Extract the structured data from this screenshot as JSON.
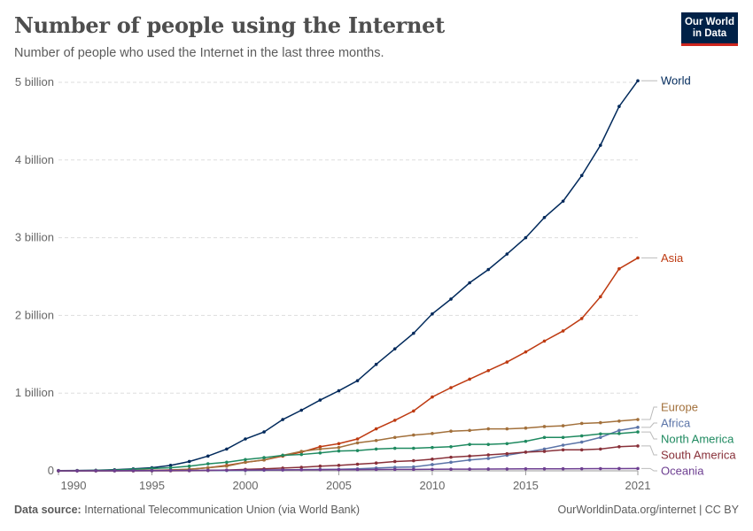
{
  "header": {
    "title": "Number of people using the Internet",
    "subtitle": "Number of people who used the Internet in the last three months.",
    "logo": "Our World in Data"
  },
  "footer": {
    "source_label": "Data source:",
    "source": "International Telecommunication Union (via World Bank)",
    "url": "OurWorldinData.org/internet | CC BY"
  },
  "chart_data": {
    "type": "line",
    "title": "Number of people using the Internet",
    "xlim": [
      1990,
      2021
    ],
    "ylim": [
      0,
      5000000000
    ],
    "x_ticks": [
      "1990",
      "1995",
      "2000",
      "2005",
      "2010",
      "2015",
      "2021"
    ],
    "y_ticks": [
      {
        "value": 0,
        "label": "0"
      },
      {
        "value": 1,
        "label": "1 billion"
      },
      {
        "value": 2,
        "label": "2 billion"
      },
      {
        "value": 3,
        "label": "3 billion"
      },
      {
        "value": 4,
        "label": "4 billion"
      },
      {
        "value": 5,
        "label": "5 billion"
      }
    ],
    "y_unit": "billion",
    "grid": "horizontal dashed",
    "legend": "right, labels at line ends",
    "x": [
      1990,
      1991,
      1992,
      1993,
      1994,
      1995,
      1996,
      1997,
      1998,
      1999,
      2000,
      2001,
      2002,
      2003,
      2004,
      2005,
      2006,
      2007,
      2008,
      2009,
      2010,
      2011,
      2012,
      2013,
      2014,
      2015,
      2016,
      2017,
      2018,
      2019,
      2020,
      2021
    ],
    "series": [
      {
        "name": "World",
        "color": "#00295b",
        "values": [
          0.003,
          0.004,
          0.007,
          0.014,
          0.025,
          0.04,
          0.07,
          0.12,
          0.19,
          0.28,
          0.41,
          0.5,
          0.66,
          0.78,
          0.91,
          1.03,
          1.16,
          1.37,
          1.57,
          1.77,
          2.02,
          2.21,
          2.42,
          2.59,
          2.79,
          3.0,
          3.26,
          3.47,
          3.8,
          4.19,
          4.69,
          5.02
        ]
      },
      {
        "name": "Asia",
        "color": "#be3a11",
        "values": [
          0.0002,
          0.0004,
          0.001,
          0.002,
          0.004,
          0.007,
          0.012,
          0.02,
          0.04,
          0.07,
          0.11,
          0.14,
          0.19,
          0.24,
          0.31,
          0.35,
          0.41,
          0.54,
          0.65,
          0.77,
          0.95,
          1.07,
          1.18,
          1.29,
          1.4,
          1.53,
          1.67,
          1.8,
          1.96,
          2.24,
          2.6,
          2.74
        ]
      },
      {
        "name": "Europe",
        "color": "#a2703b",
        "values": [
          0.0005,
          0.001,
          0.002,
          0.003,
          0.004,
          0.005,
          0.01,
          0.02,
          0.04,
          0.06,
          0.11,
          0.14,
          0.2,
          0.25,
          0.28,
          0.3,
          0.36,
          0.39,
          0.43,
          0.46,
          0.48,
          0.51,
          0.52,
          0.54,
          0.54,
          0.55,
          0.57,
          0.58,
          0.61,
          0.62,
          0.64,
          0.66
        ]
      },
      {
        "name": "Africa",
        "color": "#5b74a8",
        "values": [
          0,
          0,
          0,
          0.0001,
          0.0002,
          0.0004,
          0.001,
          0.002,
          0.003,
          0.004,
          0.006,
          0.009,
          0.012,
          0.015,
          0.018,
          0.02,
          0.025,
          0.035,
          0.045,
          0.05,
          0.08,
          0.11,
          0.14,
          0.16,
          0.2,
          0.24,
          0.28,
          0.33,
          0.37,
          0.43,
          0.52,
          0.56
        ]
      },
      {
        "name": "North America",
        "color": "#1f8a60",
        "values": [
          0.002,
          0.003,
          0.005,
          0.01,
          0.02,
          0.03,
          0.04,
          0.06,
          0.09,
          0.11,
          0.145,
          0.17,
          0.2,
          0.21,
          0.23,
          0.255,
          0.26,
          0.28,
          0.29,
          0.29,
          0.3,
          0.31,
          0.34,
          0.34,
          0.35,
          0.38,
          0.43,
          0.43,
          0.45,
          0.475,
          0.48,
          0.5
        ]
      },
      {
        "name": "South America",
        "color": "#883039",
        "values": [
          0,
          0,
          0.0001,
          0.0002,
          0.0005,
          0.001,
          0.002,
          0.003,
          0.006,
          0.01,
          0.018,
          0.025,
          0.035,
          0.045,
          0.06,
          0.07,
          0.085,
          0.1,
          0.12,
          0.13,
          0.15,
          0.175,
          0.19,
          0.205,
          0.22,
          0.24,
          0.25,
          0.27,
          0.27,
          0.28,
          0.31,
          0.32
        ]
      },
      {
        "name": "Oceania",
        "color": "#6d3e91",
        "values": [
          0.0003,
          0.0005,
          0.001,
          0.002,
          0.003,
          0.004,
          0.005,
          0.006,
          0.007,
          0.008,
          0.01,
          0.011,
          0.012,
          0.013,
          0.014,
          0.015,
          0.016,
          0.017,
          0.018,
          0.019,
          0.02,
          0.021,
          0.022,
          0.023,
          0.024,
          0.025,
          0.026,
          0.026,
          0.027,
          0.028,
          0.029,
          0.03
        ]
      }
    ]
  }
}
